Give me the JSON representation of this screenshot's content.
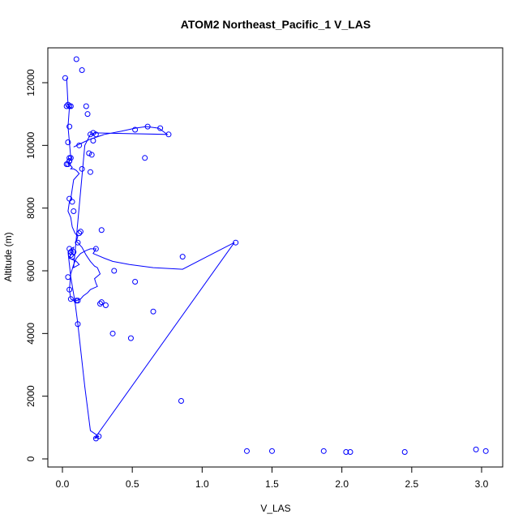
{
  "chart_data": {
    "type": "line",
    "title": "ATOM2 Northeast_Pacific_1 V_LAS",
    "xlabel": "V_LAS",
    "ylabel": "Altitude (m)",
    "xlim": [
      0.0,
      3.0
    ],
    "ylim": [
      0,
      12000
    ],
    "xticks": [
      "0.0",
      "0.5",
      "1.0",
      "1.5",
      "2.0",
      "2.5",
      "3.0"
    ],
    "yticks": [
      "0",
      "2000",
      "4000",
      "6000",
      "8000",
      "10000",
      "12000"
    ],
    "grid": false,
    "legend": "none",
    "series_color": "#0000ff",
    "series": [
      {
        "x": [
          0.03,
          0.04,
          0.05,
          0.06,
          0.05,
          0.04,
          0.05,
          0.06,
          0.05,
          0.04,
          0.05,
          0.07,
          0.06,
          0.08,
          0.1,
          0.12,
          0.1,
          0.08,
          0.06,
          0.05,
          0.04,
          0.06,
          0.07,
          0.09,
          0.11,
          0.1,
          0.14,
          0.17,
          0.2,
          0.22,
          0.23,
          0.25,
          0.27,
          0.23,
          0.24,
          0.25,
          0.2,
          0.18,
          0.15,
          0.13,
          0.1,
          0.08,
          0.06,
          0.05,
          0.06,
          0.08,
          0.1,
          0.13,
          0.17,
          0.2,
          0.24,
          0.22,
          0.3,
          0.36,
          0.48,
          0.65,
          0.86,
          1.23,
          0.23,
          0.26,
          0.2,
          0.16,
          0.11,
          0.09,
          0.06,
          0.04,
          0.05,
          0.06,
          0.08,
          0.07,
          0.06,
          0.05,
          0.1,
          0.12,
          0.08,
          0.16,
          0.2,
          0.23,
          0.75,
          0.69,
          0.6,
          0.52,
          0.42,
          0.3,
          0.2,
          0.15,
          0.08
        ],
        "y": [
          12150,
          11300,
          11250,
          11200,
          11200,
          10600,
          10100,
          9600,
          9500,
          9400,
          9400,
          9300,
          9250,
          9250,
          9200,
          9100,
          9000,
          8900,
          8300,
          8200,
          7900,
          7700,
          7400,
          7200,
          7100,
          6950,
          6750,
          6500,
          6300,
          6200,
          6150,
          6100,
          5900,
          5750,
          5600,
          5500,
          5400,
          5300,
          5200,
          5100,
          5050,
          5050,
          5100,
          5400,
          5900,
          6200,
          6400,
          6550,
          6650,
          6700,
          6700,
          6550,
          6400,
          6300,
          6200,
          6100,
          6050,
          6900,
          650,
          720,
          900,
          2300,
          4300,
          5000,
          5800,
          6600,
          6650,
          6700,
          6750,
          6600,
          6500,
          6400,
          6300,
          6200,
          6100,
          10000,
          10350,
          10400,
          10350,
          10550,
          10600,
          10550,
          10450,
          10350,
          10200,
          10100,
          9950
        ]
      }
    ],
    "points": {
      "x": [
        0.02,
        0.03,
        0.04,
        0.05,
        0.06,
        0.1,
        0.14,
        0.17,
        0.18,
        0.05,
        0.04,
        0.06,
        0.05,
        0.04,
        0.03,
        0.05,
        0.07,
        0.08,
        0.05,
        0.06,
        0.04,
        0.05,
        0.06,
        0.07,
        0.06,
        0.11,
        0.12,
        0.13,
        0.1,
        0.2,
        0.22,
        0.22,
        0.24,
        0.28,
        0.59,
        0.52,
        0.61,
        0.7,
        0.76,
        0.21,
        0.2,
        0.14,
        0.12,
        0.19,
        0.24,
        0.28,
        0.37,
        0.52,
        0.65,
        0.86,
        1.24,
        0.85,
        0.27,
        0.31,
        0.36,
        0.49,
        0.11,
        0.11,
        0.05,
        0.05,
        0.08,
        0.24,
        0.26,
        1.32,
        1.5,
        1.87,
        2.03,
        2.06,
        2.45,
        2.96,
        3.03
      ],
      "y": [
        12150,
        11250,
        11300,
        11250,
        11250,
        12750,
        12400,
        11250,
        11000,
        10600,
        10100,
        9600,
        9500,
        9400,
        9400,
        8300,
        8200,
        7900,
        6700,
        6600,
        5800,
        5400,
        5100,
        6450,
        6500,
        6900,
        7200,
        7250,
        5050,
        10350,
        10150,
        10400,
        10350,
        7300,
        9600,
        10500,
        10600,
        10550,
        10350,
        9700,
        9150,
        9250,
        10000,
        9750,
        6700,
        5000,
        6000,
        5650,
        4700,
        6450,
        6900,
        1850,
        4950,
        4900,
        4000,
        3850,
        5050,
        4300,
        9600,
        9500,
        6600,
        650,
        720,
        250,
        250,
        250,
        220,
        220,
        220,
        300,
        250
      ]
    }
  }
}
